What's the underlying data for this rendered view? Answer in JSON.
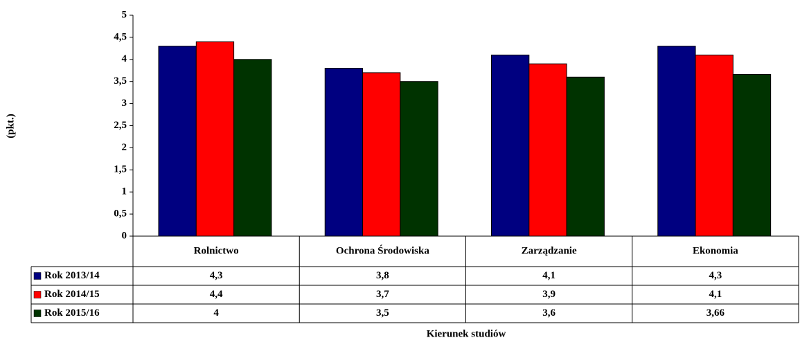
{
  "chart_data": {
    "type": "bar",
    "y_label": "(pkt.)",
    "x_label": "Kierunek studiów",
    "categories": [
      "Rolnictwo",
      "Ochrona Środowiska",
      "Zarządzanie",
      "Ekonomia"
    ],
    "series": [
      {
        "name": "Rok 2013/14",
        "color": "#000080",
        "values": [
          4.3,
          3.8,
          4.1,
          4.3
        ],
        "value_labels": [
          "4,3",
          "3,8",
          "4,1",
          "4,3"
        ]
      },
      {
        "name": "Rok 2014/15",
        "color": "#ff0000",
        "values": [
          4.4,
          3.7,
          3.9,
          4.1
        ],
        "value_labels": [
          "4,4",
          "3,7",
          "3,9",
          "4,1"
        ]
      },
      {
        "name": "Rok 2015/16",
        "color": "#003300",
        "values": [
          4,
          3.5,
          3.6,
          3.66
        ],
        "value_labels": [
          "4",
          "3,5",
          "3,6",
          "3,66"
        ]
      }
    ],
    "ylim": [
      0,
      5
    ],
    "yticks": [
      0,
      {
        "value": 0.5,
        "label": "0,5"
      },
      1,
      {
        "value": 1.5,
        "label": "1,5"
      },
      2,
      {
        "value": 2.5,
        "label": "2,5"
      },
      3,
      {
        "value": 3.5,
        "label": "3,5"
      },
      4,
      {
        "value": 4.5,
        "label": "4,5"
      },
      5
    ]
  }
}
